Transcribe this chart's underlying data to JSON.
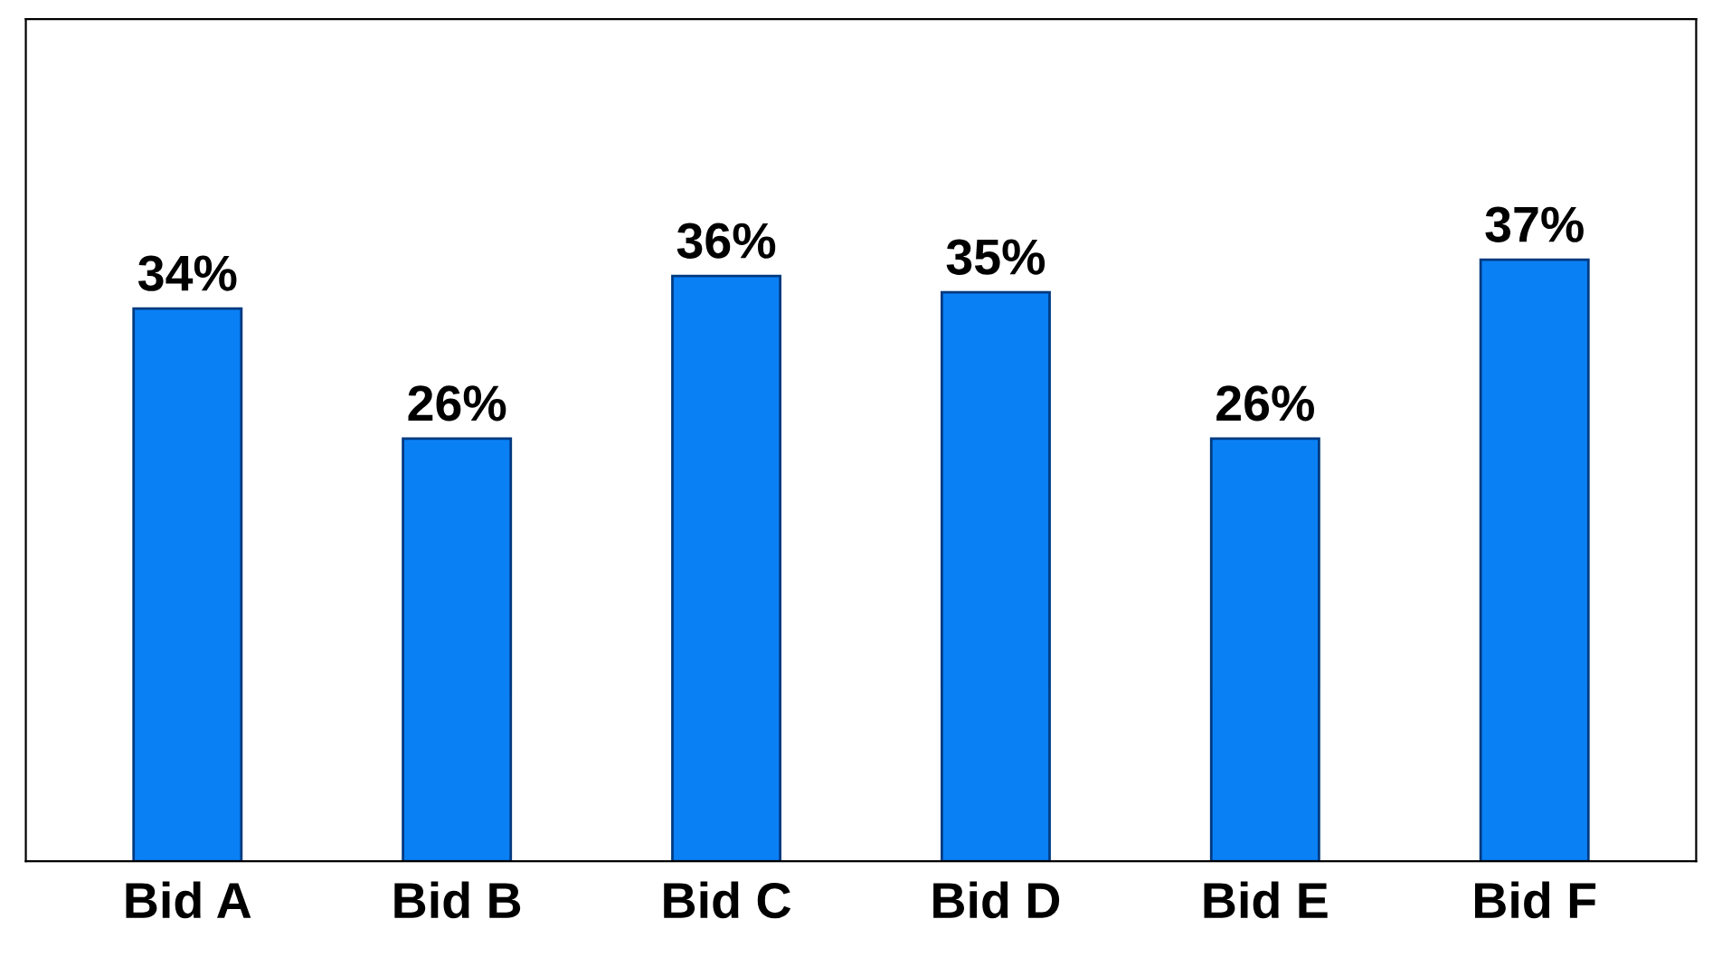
{
  "chart_data": {
    "type": "bar",
    "categories": [
      "Bid A",
      "Bid B",
      "Bid C",
      "Bid D",
      "Bid E",
      "Bid F"
    ],
    "values": [
      34,
      26,
      36,
      35,
      26,
      37
    ],
    "value_labels": [
      "34%",
      "26%",
      "36%",
      "35%",
      "26%",
      "37%"
    ],
    "color": "#0a80f5",
    "tick_labels": "x"
  }
}
